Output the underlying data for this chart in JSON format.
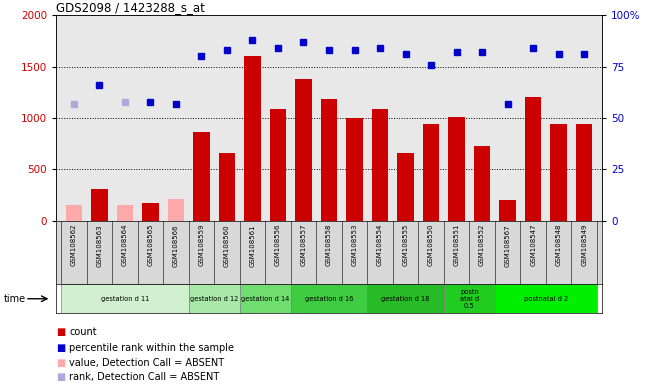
{
  "title": "GDS2098 / 1423288_s_at",
  "samples": [
    "GSM108562",
    "GSM108563",
    "GSM108564",
    "GSM108565",
    "GSM108566",
    "GSM108559",
    "GSM108560",
    "GSM108561",
    "GSM108556",
    "GSM108557",
    "GSM108558",
    "GSM108553",
    "GSM108554",
    "GSM108555",
    "GSM108550",
    "GSM108551",
    "GSM108552",
    "GSM108567",
    "GSM108547",
    "GSM108548",
    "GSM108549"
  ],
  "bar_values": [
    150,
    310,
    150,
    170,
    210,
    860,
    660,
    1600,
    1090,
    1380,
    1190,
    1000,
    1090,
    660,
    940,
    1010,
    730,
    200,
    1210,
    940,
    940
  ],
  "bar_absent": [
    true,
    false,
    true,
    false,
    true,
    false,
    false,
    false,
    false,
    false,
    false,
    false,
    false,
    false,
    false,
    false,
    false,
    false,
    false,
    false,
    false
  ],
  "dot_values": [
    57,
    66,
    58,
    58,
    57,
    80,
    83,
    88,
    84,
    87,
    83,
    83,
    84,
    81,
    76,
    82,
    82,
    57,
    84,
    81,
    81
  ],
  "dot_absent": [
    true,
    false,
    true,
    false,
    false,
    false,
    false,
    false,
    false,
    false,
    false,
    false,
    false,
    false,
    false,
    false,
    false,
    false,
    false,
    false,
    false
  ],
  "groups": [
    {
      "label": "gestation d 11",
      "start": 0,
      "end": 4,
      "color": "#d0f0d0"
    },
    {
      "label": "gestation d 12",
      "start": 5,
      "end": 6,
      "color": "#a8e8a8"
    },
    {
      "label": "gestation d 14",
      "start": 7,
      "end": 8,
      "color": "#70dd70"
    },
    {
      "label": "gestation d 16",
      "start": 9,
      "end": 11,
      "color": "#40cc40"
    },
    {
      "label": "gestation d 18",
      "start": 12,
      "end": 14,
      "color": "#28bb28"
    },
    {
      "label": "postn\natal d\n0.5",
      "start": 15,
      "end": 16,
      "color": "#20cc20"
    },
    {
      "label": "postnatal d 2",
      "start": 17,
      "end": 20,
      "color": "#00ee00"
    }
  ],
  "bar_color_present": "#cc0000",
  "bar_color_absent": "#ffaaaa",
  "dot_color_present": "#0000cc",
  "dot_color_absent": "#aaaadd",
  "ylim_left": [
    0,
    2000
  ],
  "ylim_right": [
    0,
    100
  ],
  "yticks_left": [
    0,
    500,
    1000,
    1500,
    2000
  ],
  "yticks_right": [
    0,
    25,
    50,
    75,
    100
  ],
  "bg_color": "#d8d8d8",
  "plot_bg_color": "#e8e8e8"
}
